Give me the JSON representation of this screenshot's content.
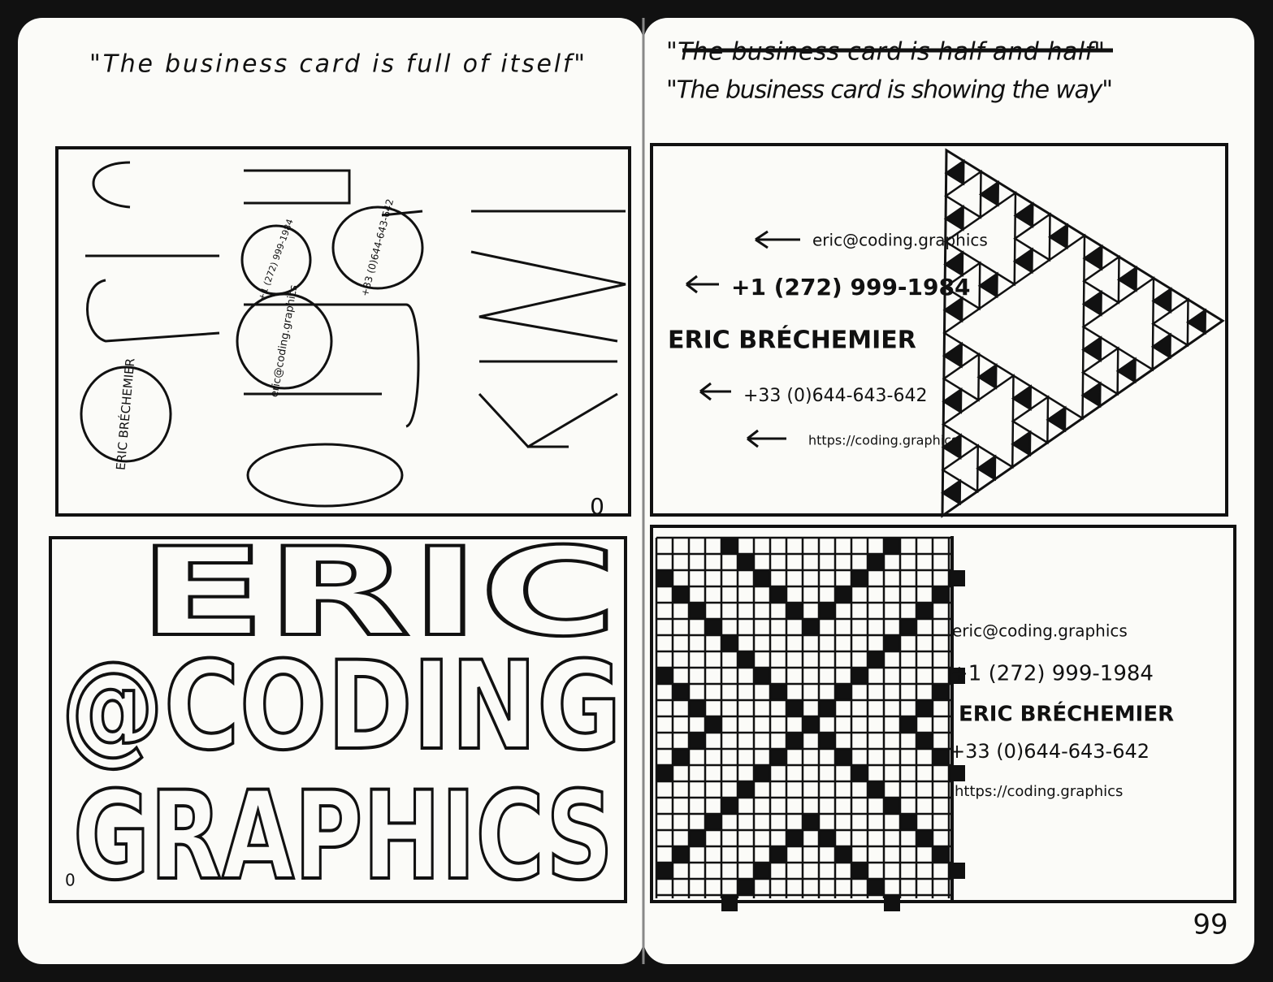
{
  "headings": {
    "left": "\"The business card is full of itself\"",
    "right_struck": "\"The business card is half and half\"",
    "right": "\"The business card is showing the way\""
  },
  "cards": [
    {
      "lines": [
        "ERIC BRÉCHEMIER",
        "+1 (272) 999-1984",
        "+33 (0)644-643-642",
        "eric@coding.graphics",
        "0"
      ]
    },
    {
      "lines": [
        "eric@coding.graphics",
        "+1 (272) 999-1984",
        "ERIC BRÉCHEMIER",
        "+33 (0)644-643-642",
        "https://coding.graphics"
      ]
    },
    {
      "lines": [
        "ERIC",
        "@CODING",
        "GRAPHICS",
        "0"
      ]
    },
    {
      "lines": [
        "eric@coding.graphics",
        "+1 (272) 999-1984",
        "ERIC BRÉCHEMIER",
        "+33 (0)644-643-642",
        "https://coding.graphics"
      ]
    }
  ],
  "page_number": "99"
}
